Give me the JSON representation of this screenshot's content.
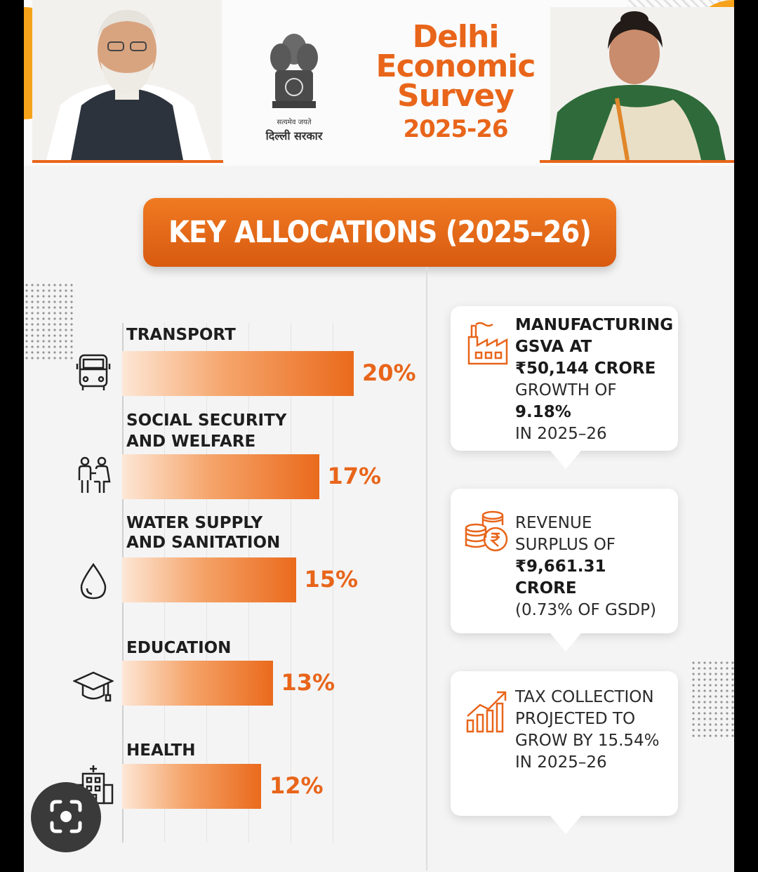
{
  "header": {
    "title_lines": [
      "Delhi",
      "Economic",
      "Survey",
      "2025-26"
    ],
    "emblem_motto": "सत्यमेव जयते",
    "emblem_caption": "दिल्ली सरकार"
  },
  "banner": {
    "label": "KEY ALLOCATIONS (2025–26)"
  },
  "chart_data": {
    "type": "bar",
    "orientation": "horizontal",
    "title": "KEY ALLOCATIONS (2025–26)",
    "categories": [
      "TRANSPORT",
      "SOCIAL SECURITY AND WELFARE",
      "WATER SUPPLY AND SANITATION",
      "EDUCATION",
      "HEALTH"
    ],
    "category_lines": [
      [
        "TRANSPORT"
      ],
      [
        "SOCIAL SECURITY",
        "AND WELFARE"
      ],
      [
        "WATER SUPPLY",
        "AND SANITATION"
      ],
      [
        "EDUCATION"
      ],
      [
        "HEALTH"
      ]
    ],
    "values": [
      20,
      17,
      15,
      13,
      12
    ],
    "value_labels": [
      "20%",
      "17%",
      "15%",
      "13%",
      "12%"
    ],
    "icons": [
      "bus-icon",
      "people-icon",
      "water-drop-icon",
      "graduation-cap-icon",
      "hospital-icon"
    ],
    "xlabel": "",
    "ylabel": "",
    "xlim": [
      0,
      22
    ],
    "grid": true,
    "bar_color": "#e8651a"
  },
  "cards": [
    {
      "icon": "factory-icon",
      "lines": [
        {
          "text": "MANUFACTURING",
          "bold": true
        },
        {
          "text": "GSVA AT",
          "bold": true
        },
        {
          "text": "₹50,144 CRORE",
          "bold": true
        },
        {
          "text": "GROWTH OF",
          "bold": false
        },
        {
          "text": "9.18%",
          "bold": true
        },
        {
          "text": "IN 2025–26",
          "bold": false
        }
      ]
    },
    {
      "icon": "coins-rupee-icon",
      "lines": [
        {
          "text": "REVENUE",
          "bold": false
        },
        {
          "text": "SURPLUS OF",
          "bold": false
        },
        {
          "text": "₹9,661.31 CRORE",
          "bold": true
        },
        {
          "text": "(0.73% OF GSDP)",
          "bold": false
        }
      ]
    },
    {
      "icon": "growth-chart-icon",
      "lines": [
        {
          "text": "TAX COLLECTION",
          "bold": false
        },
        {
          "text": "PROJECTED TO",
          "bold": false
        },
        {
          "text": "GROW BY 15.54%",
          "bold": false
        },
        {
          "text": "IN 2025–26",
          "bold": false
        }
      ]
    }
  ],
  "colors": {
    "accent": "#e8651a",
    "accent_light": "#f6a21a",
    "background": "#f4f4f4"
  }
}
